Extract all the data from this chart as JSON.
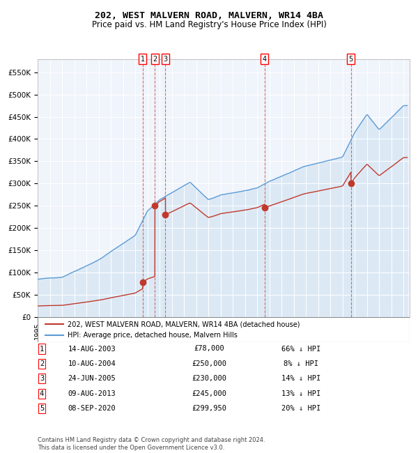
{
  "title": "202, WEST MALVERN ROAD, MALVERN, WR14 4BA",
  "subtitle": "Price paid vs. HM Land Registry's House Price Index (HPI)",
  "legend_line1": "202, WEST MALVERN ROAD, MALVERN, WR14 4BA (detached house)",
  "legend_line2": "HPI: Average price, detached house, Malvern Hills",
  "footer": "Contains HM Land Registry data © Crown copyright and database right 2024.\nThis data is licensed under the Open Government Licence v3.0.",
  "hpi_color": "#aec6e8",
  "price_color": "#c0392b",
  "background_color": "#dce9f5",
  "transactions": [
    {
      "num": 1,
      "date": "14-AUG-2003",
      "date_x": 2003.615,
      "price": 78000,
      "pct": "66%"
    },
    {
      "num": 2,
      "date": "10-AUG-2004",
      "date_x": 2004.612,
      "price": 250000,
      "pct": "8%"
    },
    {
      "num": 3,
      "date": "24-JUN-2005",
      "date_x": 2005.479,
      "price": 230000,
      "pct": "14%"
    },
    {
      "num": 4,
      "date": "09-AUG-2013",
      "date_x": 2013.612,
      "price": 245000,
      "pct": "13%"
    },
    {
      "num": 5,
      "date": "08-SEP-2020",
      "date_x": 2020.688,
      "price": 299950,
      "pct": "20%"
    }
  ],
  "ylim": [
    0,
    580000
  ],
  "xlim_start": 1995.0,
  "xlim_end": 2025.5
}
